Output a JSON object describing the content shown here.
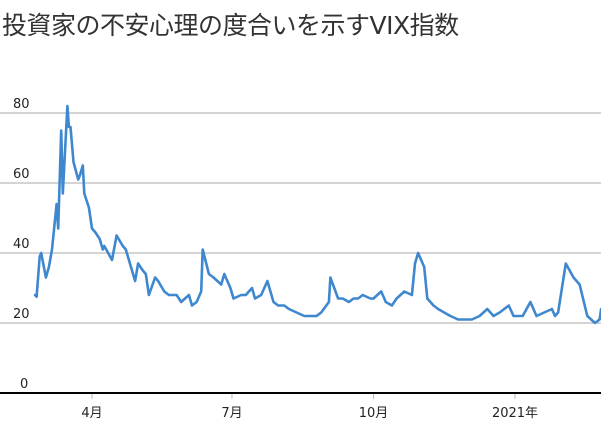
{
  "title": "投資家の不安心理の度合いを示すVIX指数",
  "colors": {
    "line": "#3f88cf",
    "grid": "#aaaaaa",
    "axis": "#000000"
  },
  "chart_data": {
    "type": "line",
    "title": "投資家の不安心理の度合いを示すVIX指数",
    "xlabel": "",
    "ylabel": "",
    "ylim": [
      0,
      80
    ],
    "yticks": [
      0,
      20,
      40,
      60,
      80
    ],
    "xticks": [
      {
        "label": "4月",
        "date": "2020-04-01"
      },
      {
        "label": "7月",
        "date": "2020-07-01"
      },
      {
        "label": "10月",
        "date": "2020-10-01"
      },
      {
        "label": "2021年",
        "date": "2021-01-01"
      }
    ],
    "grid": true,
    "legend": null,
    "series": [
      {
        "name": "VIX",
        "x": [
          "2020-02-24",
          "2020-02-25",
          "2020-02-27",
          "2020-02-28",
          "2020-03-02",
          "2020-03-04",
          "2020-03-06",
          "2020-03-09",
          "2020-03-10",
          "2020-03-12",
          "2020-03-13",
          "2020-03-16",
          "2020-03-17",
          "2020-03-18",
          "2020-03-20",
          "2020-03-23",
          "2020-03-24",
          "2020-03-26",
          "2020-03-27",
          "2020-03-30",
          "2020-04-01",
          "2020-04-03",
          "2020-04-06",
          "2020-04-08",
          "2020-04-09",
          "2020-04-14",
          "2020-04-17",
          "2020-04-21",
          "2020-04-23",
          "2020-04-27",
          "2020-04-29",
          "2020-05-01",
          "2020-05-04",
          "2020-05-06",
          "2020-05-08",
          "2020-05-12",
          "2020-05-14",
          "2020-05-18",
          "2020-05-21",
          "2020-05-26",
          "2020-05-29",
          "2020-06-03",
          "2020-06-05",
          "2020-06-08",
          "2020-06-11",
          "2020-06-12",
          "2020-06-16",
          "2020-06-19",
          "2020-06-24",
          "2020-06-26",
          "2020-06-30",
          "2020-07-02",
          "2020-07-07",
          "2020-07-10",
          "2020-07-14",
          "2020-07-16",
          "2020-07-20",
          "2020-07-24",
          "2020-07-28",
          "2020-07-31",
          "2020-08-04",
          "2020-08-07",
          "2020-08-12",
          "2020-08-17",
          "2020-08-20",
          "2020-08-25",
          "2020-08-28",
          "2020-09-02",
          "2020-09-03",
          "2020-09-08",
          "2020-09-11",
          "2020-09-15",
          "2020-09-18",
          "2020-09-21",
          "2020-09-24",
          "2020-09-29",
          "2020-10-01",
          "2020-10-06",
          "2020-10-09",
          "2020-10-13",
          "2020-10-16",
          "2020-10-21",
          "2020-10-26",
          "2020-10-28",
          "2020-10-30",
          "2020-11-03",
          "2020-11-05",
          "2020-11-09",
          "2020-11-12",
          "2020-11-16",
          "2020-11-20",
          "2020-11-25",
          "2020-11-30",
          "2020-12-04",
          "2020-12-09",
          "2020-12-14",
          "2020-12-18",
          "2020-12-22",
          "2020-12-28",
          "2020-12-31",
          "2021-01-06",
          "2021-01-11",
          "2021-01-15",
          "2021-01-20",
          "2021-01-25",
          "2021-01-27",
          "2021-01-29",
          "2021-02-03",
          "2021-02-08",
          "2021-02-12",
          "2021-02-17",
          "2021-02-22",
          "2021-02-25",
          "2021-02-26"
        ],
        "values": [
          28,
          27.5,
          39,
          40,
          33,
          36,
          41,
          54,
          47,
          75,
          57,
          82,
          76,
          76,
          66,
          61,
          62,
          65,
          57,
          53,
          47,
          46,
          44,
          41,
          42,
          38,
          45,
          42,
          41,
          35,
          32,
          37,
          35,
          34,
          28,
          33,
          32,
          29,
          28,
          28,
          26,
          28,
          25,
          26,
          29,
          41,
          34,
          33,
          31,
          34,
          30,
          27,
          28,
          28,
          30,
          27,
          28,
          32,
          26,
          25,
          25,
          24,
          23,
          22,
          22,
          22,
          23,
          26,
          33,
          27,
          27,
          26,
          27,
          27,
          28,
          27,
          27,
          29,
          26,
          25,
          27,
          29,
          28,
          37,
          40,
          36,
          27,
          25,
          24,
          23,
          22,
          21,
          21,
          21,
          22,
          24,
          22,
          23,
          25,
          22,
          22,
          26,
          22,
          23,
          24,
          22,
          23,
          37,
          33,
          31,
          22,
          20,
          21,
          24
        ]
      }
    ]
  }
}
